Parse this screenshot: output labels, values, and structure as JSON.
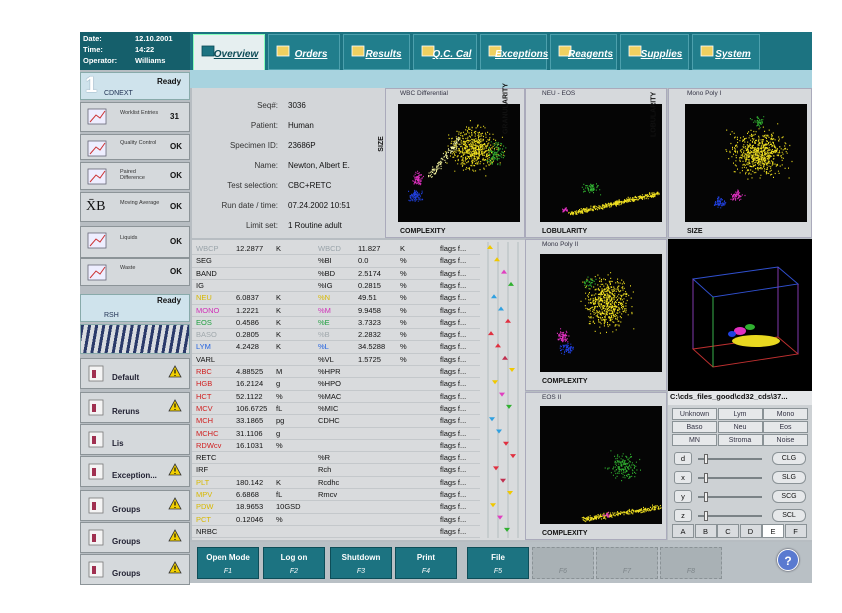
{
  "header": {
    "date_label": "Date:",
    "date": "12.10.2001",
    "time_label": "Time:",
    "time": "14:22",
    "operator_label": "Operator:",
    "operator": "Williams"
  },
  "tabs": [
    "Overview",
    "Orders",
    "Results",
    "Q.C. Cal",
    "Exceptions",
    "Reagents",
    "Supplies",
    "System"
  ],
  "sidebar": {
    "module1": {
      "number": "1",
      "status": "Ready",
      "name": "CDNEXT"
    },
    "items": [
      {
        "label": "Worklist Entries",
        "value": "31"
      },
      {
        "label": "Quality Control",
        "value": "OK"
      },
      {
        "label": "Paired Difference",
        "value": "OK"
      },
      {
        "label": "Moving Average",
        "value": "OK",
        "icon": "X̄B"
      },
      {
        "label": "Liquids",
        "value": "OK"
      },
      {
        "label": "Waste",
        "value": "OK"
      }
    ],
    "module2": {
      "status": "Ready",
      "name": "RSH"
    },
    "queues": [
      "Default",
      "Reruns",
      "Lis",
      "Exception...",
      "Groups",
      "Groups",
      "Groups"
    ]
  },
  "patient": [
    {
      "label": "Seq#:",
      "value": "3036"
    },
    {
      "label": "Patient:",
      "value": "Human"
    },
    {
      "label": "Specimen ID:",
      "value": "23686P"
    },
    {
      "label": "Name:",
      "value": "Newton, Albert E."
    },
    {
      "label": "Test selection:",
      "value": "CBC+RETC"
    },
    {
      "label": "Run date / time:",
      "value": "07.24.2002 10:51"
    },
    {
      "label": "Limit set:",
      "value": "1 Routine adult"
    }
  ],
  "plots": [
    {
      "title": "WBC Differential",
      "y_label": "SIZE",
      "x_label": "COMPLEXITY"
    },
    {
      "title": "NEU - EOS",
      "y_label": "GRANULARITY",
      "x_label": "LOBULARITY"
    },
    {
      "title": "Mono Poly I",
      "y_label": "LOBULARITY",
      "x_label": "SIZE"
    },
    {
      "title": "Mono Poly II",
      "y_label": "LOBULARITY",
      "x_label": "COMPLEXITY"
    },
    {
      "title": "EOS II",
      "y_label": "GRANULARITY",
      "x_label": "COMPLEXITY"
    }
  ],
  "plot_3d_path": "C:\\cds_files_good\\cd32_cds\\37...",
  "cell_buttons": [
    [
      "Unknown",
      "Lym",
      "Mono"
    ],
    [
      "Baso",
      "Neu",
      "Eos"
    ],
    [
      "MN",
      "Stroma",
      "Noise"
    ]
  ],
  "sliders": [
    {
      "label": "d",
      "button": "CLG"
    },
    {
      "label": "x",
      "button": "SLG"
    },
    {
      "label": "y",
      "button": "SCG"
    },
    {
      "label": "z",
      "button": "SCL"
    }
  ],
  "view_tabs": [
    "A",
    "B",
    "C",
    "D",
    "E",
    "F"
  ],
  "results": [
    {
      "name": "WBCP",
      "value": "12.2877",
      "unit": "K",
      "name2": "WBCD",
      "value2": "11.827",
      "unit2": "K",
      "flags": "flags f...",
      "color": "#9aa4aa"
    },
    {
      "name": "SEG",
      "name2": "%BI",
      "value2": "0.0",
      "unit2": "%",
      "flags": "flags f..."
    },
    {
      "name": "BAND",
      "name2": "%BD",
      "value2": "2.5174",
      "unit2": "%",
      "flags": "flags f..."
    },
    {
      "name": "IG",
      "name2": "%IG",
      "value2": "0.2815",
      "unit2": "%",
      "flags": "flags f..."
    },
    {
      "name": "NEU",
      "value": "6.0837",
      "unit": "K",
      "name2": "%N",
      "value2": "49.51",
      "unit2": "%",
      "flags": "flags f...",
      "color": "#d8b800"
    },
    {
      "name": "MONO",
      "value": "1.2221",
      "unit": "K",
      "name2": "%M",
      "value2": "9.9458",
      "unit2": "%",
      "flags": "flags f...",
      "color": "#d030b8"
    },
    {
      "name": "EOS",
      "value": "0.4586",
      "unit": "K",
      "name2": "%E",
      "value2": "3.7323",
      "unit2": "%",
      "flags": "flags f...",
      "color": "#20a040"
    },
    {
      "name": "BASO",
      "value": "0.2805",
      "unit": "K",
      "name2": "%B",
      "value2": "2.2832",
      "unit2": "%",
      "flags": "flags f...",
      "color": "#a0a8ac"
    },
    {
      "name": "LYM",
      "value": "4.2428",
      "unit": "K",
      "name2": "%L",
      "value2": "34.5288",
      "unit2": "%",
      "flags": "flags f...",
      "color": "#2060e0"
    },
    {
      "name": "VARL",
      "name2": "%VL",
      "value2": "1.5725",
      "unit2": "%",
      "flags": "flags f..."
    },
    {
      "name": "RBC",
      "value": "4.88525",
      "unit": "M",
      "name2": "%HPR",
      "flags": "flags f...",
      "color": "#d02020"
    },
    {
      "name": "HGB",
      "value": "16.2124",
      "unit": "g",
      "name2": "%HPO",
      "flags": "flags f...",
      "color": "#d02020"
    },
    {
      "name": "HCT",
      "value": "52.1122",
      "unit": "%",
      "name2": "%MAC",
      "flags": "flags f...",
      "color": "#d02020"
    },
    {
      "name": "MCV",
      "value": "106.6725",
      "unit": "fL",
      "name2": "%MIC",
      "flags": "flags f...",
      "color": "#d02020"
    },
    {
      "name": "MCH",
      "value": "33.1865",
      "unit": "pg",
      "name2": "CDHC",
      "flags": "flags f...",
      "color": "#d02020"
    },
    {
      "name": "MCHC",
      "value": "31.1106",
      "unit": "g",
      "flags": "flags f...",
      "color": "#d02020"
    },
    {
      "name": "RDWcv",
      "value": "16.1031",
      "unit": "%",
      "flags": "flags f...",
      "color": "#d02020"
    },
    {
      "name": "RETC",
      "name2": "%R",
      "flags": "flags f..."
    },
    {
      "name": "IRF",
      "name2": "Rch",
      "flags": "flags f..."
    },
    {
      "name": "PLT",
      "value": "180.142",
      "unit": "K",
      "name2": "Rcdhc",
      "flags": "flags f...",
      "color": "#d8b800"
    },
    {
      "name": "MPV",
      "value": "6.6868",
      "unit": "fL",
      "name2": "Rmcv",
      "flags": "flags f...",
      "color": "#d8b800"
    },
    {
      "name": "PDW",
      "value": "18.9653",
      "unit": "10GSD",
      "flags": "flags f...",
      "color": "#d8b800"
    },
    {
      "name": "PCT",
      "value": "0.12046",
      "unit": "%",
      "flags": "flags f...",
      "color": "#d8b800"
    },
    {
      "name": "NRBC",
      "flags": "flags f..."
    }
  ],
  "function_keys": [
    {
      "label": "Open Mode",
      "key": "F1"
    },
    {
      "label": "Log on",
      "key": "F2"
    },
    {
      "label": "Shutdown",
      "key": "F3"
    },
    {
      "label": "Print",
      "key": "F4"
    },
    {
      "label": "File",
      "key": "F5"
    },
    {
      "key": "F6"
    },
    {
      "key": "F7"
    },
    {
      "key": "F8"
    }
  ],
  "help": "?"
}
